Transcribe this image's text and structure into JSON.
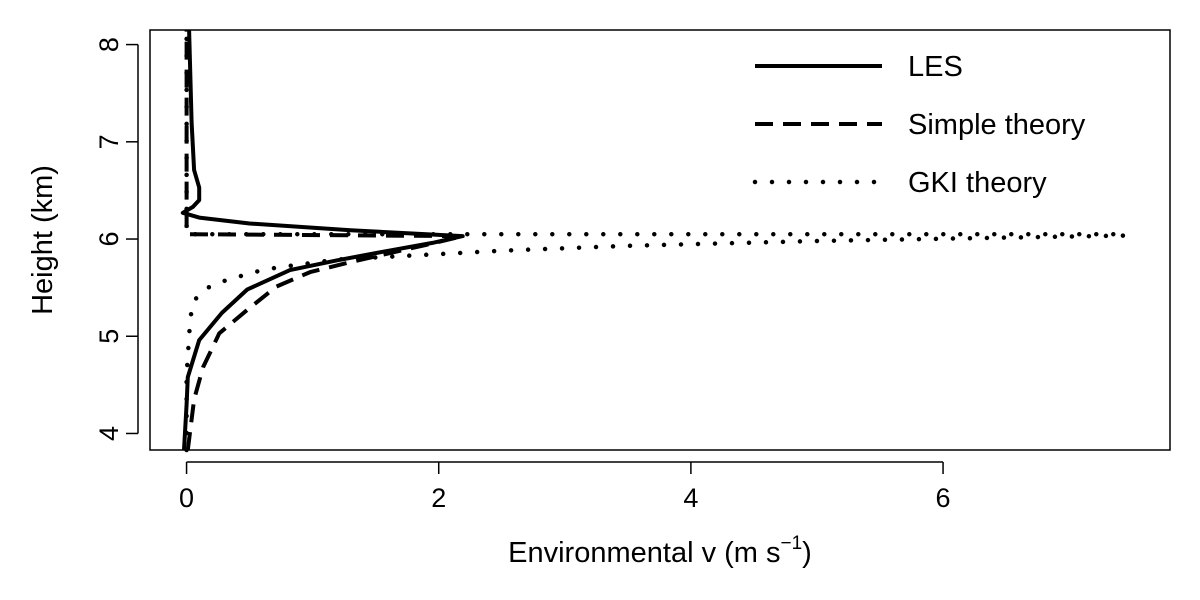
{
  "chart_data": {
    "type": "line",
    "title": "",
    "xlabel": "Environmental  v  (m s",
    "xlabel_sup": "−1",
    "xlabel_close": ")",
    "ylabel": "Height (km)",
    "xlim": [
      -0.29,
      7.8
    ],
    "ylim": [
      3.83,
      8.15
    ],
    "xticks": [
      0,
      2,
      4,
      6
    ],
    "xtick_labels": [
      "0",
      "2",
      "4",
      "6"
    ],
    "yticks": [
      4,
      5,
      6,
      7,
      8
    ],
    "ytick_labels": [
      "4",
      "5",
      "6",
      "7",
      "8"
    ],
    "grid": false,
    "legend_position": "top-right",
    "series": [
      {
        "name": "LES",
        "style": "solid",
        "points": [
          [
            -0.02,
            3.83
          ],
          [
            0.0,
            4.3
          ],
          [
            0.01,
            4.58
          ],
          [
            0.1,
            4.96
          ],
          [
            0.28,
            5.24
          ],
          [
            0.48,
            5.48
          ],
          [
            0.82,
            5.68
          ],
          [
            1.19,
            5.78
          ],
          [
            1.56,
            5.87
          ],
          [
            1.95,
            5.96
          ],
          [
            2.19,
            6.03
          ],
          [
            1.3,
            6.09
          ],
          [
            0.5,
            6.16
          ],
          [
            0.1,
            6.22
          ],
          [
            -0.03,
            6.27
          ],
          [
            0.05,
            6.33
          ],
          [
            0.1,
            6.4
          ],
          [
            0.1,
            6.53
          ],
          [
            0.06,
            6.71
          ],
          [
            0.04,
            7.2
          ],
          [
            0.02,
            8.15
          ]
        ]
      },
      {
        "name": "Simple theory",
        "style": "dashed",
        "points": [
          [
            0.01,
            3.83
          ],
          [
            0.06,
            4.35
          ],
          [
            0.13,
            4.68
          ],
          [
            0.26,
            5.03
          ],
          [
            0.48,
            5.27
          ],
          [
            0.71,
            5.51
          ],
          [
            0.98,
            5.66
          ],
          [
            1.29,
            5.76
          ],
          [
            1.56,
            5.84
          ],
          [
            1.9,
            5.94
          ],
          [
            2.19,
            6.03
          ],
          [
            0.0,
            6.05
          ],
          [
            0.0,
            8.15
          ]
        ]
      },
      {
        "name": "GKI theory",
        "style": "dotted",
        "points": [
          [
            0.0,
            3.83
          ],
          [
            0.0,
            4.6
          ],
          [
            0.01,
            4.79
          ],
          [
            0.03,
            5.19
          ],
          [
            0.06,
            5.37
          ],
          [
            0.17,
            5.5
          ],
          [
            0.32,
            5.58
          ],
          [
            0.6,
            5.68
          ],
          [
            0.74,
            5.71
          ],
          [
            1.2,
            5.79
          ],
          [
            1.93,
            5.84
          ],
          [
            2.5,
            5.88
          ],
          [
            3.5,
            5.93
          ],
          [
            5.0,
            5.98
          ],
          [
            6.5,
            6.015
          ],
          [
            7.45,
            6.035
          ],
          [
            7.45,
            6.05
          ],
          [
            0.0,
            6.05
          ],
          [
            0.0,
            8.15
          ]
        ]
      }
    ]
  }
}
